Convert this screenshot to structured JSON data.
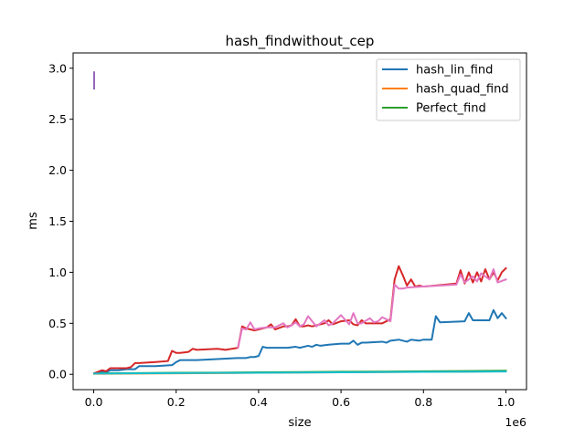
{
  "chart_data": {
    "type": "line",
    "title": "hash_findwithout_cep",
    "xlabel": "size",
    "ylabel": "ms",
    "x_offset_text": "1e6",
    "xlim": [
      -50000,
      1050000
    ],
    "ylim": [
      -0.15,
      3.15
    ],
    "x_ticks": [
      0,
      200000,
      400000,
      600000,
      800000,
      1000000
    ],
    "x_tick_labels": [
      "0.0",
      "0.2",
      "0.4",
      "0.6",
      "0.8",
      "1.0"
    ],
    "y_ticks": [
      0,
      0.5,
      1.0,
      1.5,
      2.0,
      2.5,
      3.0
    ],
    "y_tick_labels": [
      "0.0",
      "0.5",
      "1.0",
      "1.5",
      "2.0",
      "2.5",
      "3.0"
    ],
    "grid": false,
    "legend": {
      "placement": "top-right",
      "entries": [
        "hash_lin_find",
        "hash_quad_find",
        "Perfect_find"
      ]
    },
    "series": [
      {
        "name": "hash_lin_find",
        "color": "#1f77b4",
        "x": [
          1000,
          20000,
          30000,
          40000,
          60000,
          80000,
          100000,
          110000,
          150000,
          190000,
          200000,
          210000,
          250000,
          300000,
          350000,
          370000,
          380000,
          390000,
          400000,
          410000,
          420000,
          430000,
          450000,
          470000,
          490000,
          500000,
          520000,
          530000,
          540000,
          550000,
          570000,
          600000,
          620000,
          630000,
          640000,
          650000,
          660000,
          700000,
          710000,
          720000,
          740000,
          760000,
          770000,
          790000,
          800000,
          820000,
          830000,
          840000,
          900000,
          910000,
          920000,
          940000,
          960000,
          970000,
          980000,
          990000,
          1000000
        ],
        "y": [
          0.01,
          0.03,
          0.02,
          0.04,
          0.04,
          0.05,
          0.05,
          0.08,
          0.08,
          0.09,
          0.12,
          0.14,
          0.14,
          0.15,
          0.16,
          0.16,
          0.17,
          0.17,
          0.18,
          0.27,
          0.26,
          0.26,
          0.26,
          0.26,
          0.27,
          0.26,
          0.28,
          0.27,
          0.29,
          0.28,
          0.29,
          0.3,
          0.3,
          0.33,
          0.29,
          0.31,
          0.31,
          0.32,
          0.31,
          0.33,
          0.34,
          0.32,
          0.34,
          0.33,
          0.34,
          0.34,
          0.57,
          0.51,
          0.52,
          0.6,
          0.53,
          0.53,
          0.53,
          0.63,
          0.55,
          0.6,
          0.55
        ]
      },
      {
        "name": "hash_quad_find",
        "color": "#ff7f0e",
        "x": [
          1000,
          100000,
          200000,
          300000,
          400000,
          500000,
          600000,
          700000,
          800000,
          900000,
          1000000
        ],
        "y": [
          0.005,
          0.008,
          0.01,
          0.012,
          0.015,
          0.018,
          0.02,
          0.022,
          0.025,
          0.027,
          0.03
        ]
      },
      {
        "name": "Perfect_find",
        "color": "#2ca02c",
        "x": [
          1000,
          100000,
          200000,
          300000,
          400000,
          500000,
          600000,
          700000,
          800000,
          900000,
          1000000
        ],
        "y": [
          0.01,
          0.012,
          0.015,
          0.017,
          0.02,
          0.022,
          0.025,
          0.027,
          0.03,
          0.032,
          0.035
        ]
      },
      {
        "color": "#d62728",
        "x": [
          1000,
          20000,
          30000,
          40000,
          50000,
          80000,
          90000,
          100000,
          110000,
          150000,
          180000,
          190000,
          200000,
          210000,
          230000,
          240000,
          250000,
          300000,
          320000,
          350000,
          360000,
          370000,
          380000,
          390000,
          400000,
          420000,
          430000,
          440000,
          460000,
          470000,
          480000,
          490000,
          500000,
          510000,
          520000,
          530000,
          540000,
          560000,
          570000,
          580000,
          600000,
          620000,
          630000,
          640000,
          650000,
          660000,
          700000,
          720000,
          730000,
          740000,
          750000,
          760000,
          770000,
          780000,
          790000,
          800000,
          880000,
          890000,
          900000,
          910000,
          920000,
          930000,
          940000,
          950000,
          960000,
          970000,
          980000,
          990000,
          1000000
        ],
        "y": [
          0.01,
          0.04,
          0.03,
          0.06,
          0.06,
          0.06,
          0.07,
          0.11,
          0.11,
          0.12,
          0.13,
          0.23,
          0.21,
          0.21,
          0.22,
          0.25,
          0.24,
          0.25,
          0.24,
          0.26,
          0.47,
          0.45,
          0.44,
          0.43,
          0.44,
          0.46,
          0.49,
          0.44,
          0.47,
          0.47,
          0.48,
          0.54,
          0.47,
          0.47,
          0.48,
          0.47,
          0.48,
          0.5,
          0.53,
          0.49,
          0.52,
          0.53,
          0.49,
          0.48,
          0.53,
          0.5,
          0.5,
          0.54,
          0.93,
          1.06,
          0.97,
          0.87,
          0.93,
          0.86,
          0.87,
          0.86,
          0.89,
          1.02,
          0.89,
          1.0,
          0.9,
          1.0,
          0.91,
          1.03,
          0.93,
          1.0,
          0.92,
          1.0,
          1.04
        ]
      },
      {
        "color": "#e377c2",
        "x": [
          350000,
          360000,
          370000,
          380000,
          390000,
          400000,
          420000,
          440000,
          460000,
          470000,
          480000,
          490000,
          500000,
          510000,
          520000,
          540000,
          560000,
          570000,
          580000,
          600000,
          620000,
          630000,
          640000,
          650000,
          670000,
          680000,
          690000,
          700000,
          720000,
          730000,
          740000,
          750000,
          760000,
          800000,
          880000,
          890000,
          900000,
          920000,
          930000,
          940000,
          960000,
          970000,
          980000,
          1000000
        ],
        "y": [
          0.26,
          0.45,
          0.44,
          0.51,
          0.44,
          0.45,
          0.46,
          0.46,
          0.5,
          0.46,
          0.48,
          0.51,
          0.47,
          0.49,
          0.57,
          0.47,
          0.53,
          0.48,
          0.5,
          0.58,
          0.49,
          0.6,
          0.5,
          0.5,
          0.55,
          0.51,
          0.52,
          0.56,
          0.52,
          0.88,
          0.84,
          0.84,
          0.85,
          0.86,
          0.88,
          0.98,
          0.9,
          0.96,
          0.91,
          0.99,
          0.93,
          1.03,
          0.9,
          0.93
        ]
      },
      {
        "color": "#9467bd",
        "x": [
          1000,
          1000
        ],
        "y": [
          2.8,
          2.96
        ]
      },
      {
        "color": "#17becf",
        "x": [
          1000,
          100000,
          200000,
          300000,
          400000,
          500000,
          600000,
          700000,
          800000,
          900000,
          1000000
        ],
        "y": [
          0.008,
          0.01,
          0.012,
          0.014,
          0.016,
          0.018,
          0.02,
          0.022,
          0.024,
          0.026,
          0.028
        ]
      }
    ]
  }
}
